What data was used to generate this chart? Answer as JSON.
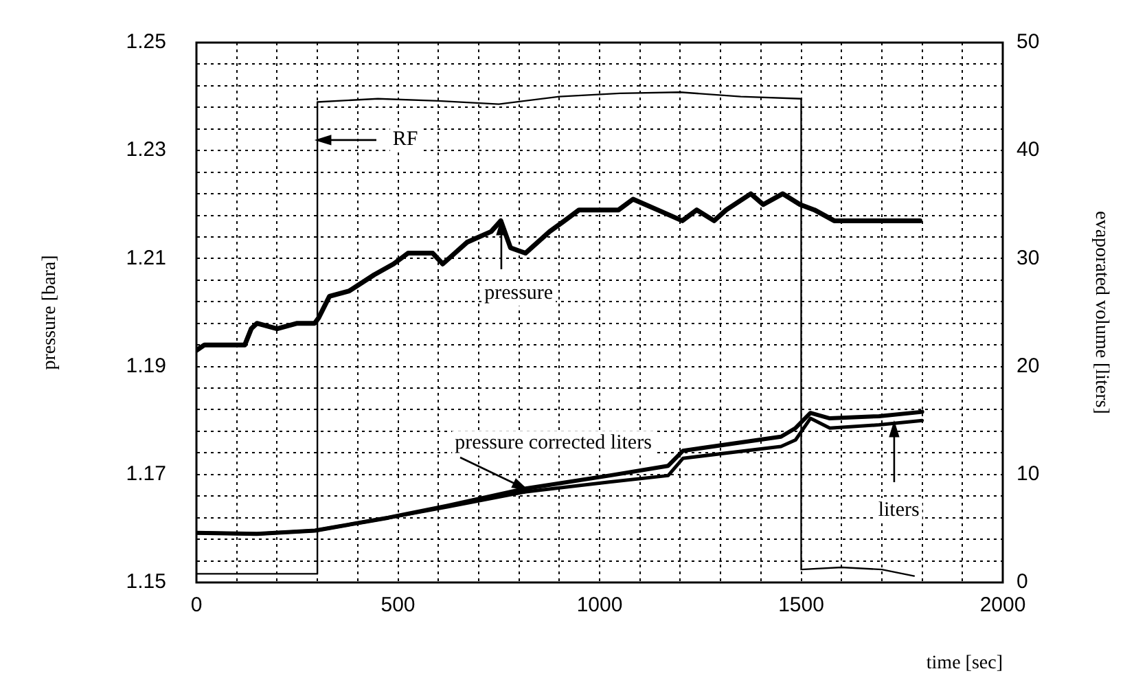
{
  "chart_data": {
    "type": "line",
    "xlabel": "time [sec]",
    "ylabel": "pressure [bara]",
    "y2label": "evaporated volume [liters]",
    "xlim": [
      0,
      2000
    ],
    "xticks": [
      0,
      {
        "value": 100,
        "label": null
      },
      {
        "value": 200,
        "label": null
      },
      {
        "value": 300,
        "label": null
      },
      {
        "value": 400,
        "label": null
      },
      500,
      {
        "value": 600,
        "label": null
      },
      {
        "value": 700,
        "label": null
      },
      {
        "value": 800,
        "label": null
      },
      {
        "value": 900,
        "label": null
      },
      1000,
      {
        "value": 1100,
        "label": null
      },
      {
        "value": 1200,
        "label": null
      },
      {
        "value": 1300,
        "label": null
      },
      {
        "value": 1400,
        "label": null
      },
      1500,
      {
        "value": 1600,
        "label": null
      },
      {
        "value": 1700,
        "label": null
      },
      {
        "value": 1800,
        "label": null
      },
      {
        "value": 1900,
        "label": null
      },
      2000
    ],
    "ylim": [
      1.15,
      1.25
    ],
    "yticks": [
      1.15,
      {
        "value": 1.154,
        "label": null
      },
      {
        "value": 1.158,
        "label": null
      },
      {
        "value": 1.162,
        "label": null
      },
      {
        "value": 1.166,
        "label": null
      },
      1.17,
      {
        "value": 1.174,
        "label": null
      },
      {
        "value": 1.178,
        "label": null
      },
      {
        "value": 1.182,
        "label": null
      },
      {
        "value": 1.186,
        "label": null
      },
      1.19,
      {
        "value": 1.194,
        "label": null
      },
      {
        "value": 1.198,
        "label": null
      },
      {
        "value": 1.202,
        "label": null
      },
      {
        "value": 1.206,
        "label": null
      },
      1.21,
      {
        "value": 1.214,
        "label": null
      },
      {
        "value": 1.218,
        "label": null
      },
      {
        "value": 1.222,
        "label": null
      },
      {
        "value": 1.226,
        "label": null
      },
      1.23,
      {
        "value": 1.234,
        "label": null
      },
      {
        "value": 1.238,
        "label": null
      },
      {
        "value": 1.242,
        "label": null
      },
      {
        "value": 1.246,
        "label": null
      },
      1.25
    ],
    "y2lim": [
      0,
      50
    ],
    "y2ticks": [
      0,
      10,
      20,
      30,
      40,
      50
    ],
    "grid": true,
    "legend": false,
    "line_style": "solid",
    "series": [
      {
        "color": "#000000",
        "axis": "y2",
        "x": [
          0,
          300,
          300,
          450,
          600,
          750,
          900,
          1050,
          1200,
          1350,
          1500,
          1500,
          1600,
          1700,
          1780
        ],
        "values": [
          0.8,
          0.8,
          44.5,
          44.8,
          44.6,
          44.3,
          45,
          45.3,
          45.4,
          45,
          44.8,
          1.2,
          1.4,
          1.2,
          0.6
        ]
      },
      {
        "color": "#000000",
        "x": [
          0,
          20,
          60,
          120,
          136,
          150,
          200,
          250,
          293,
          303,
          330,
          379,
          441,
          489,
          525,
          586,
          611,
          671,
          731,
          755,
          779,
          816,
          876,
          913,
          949,
          986,
          1047,
          1083,
          1144,
          1205,
          1241,
          1284,
          1314,
          1375,
          1406,
          1454,
          1497,
          1533,
          1582,
          1679,
          1795
        ],
        "values": [
          1.193,
          1.194,
          1.194,
          1.194,
          1.197,
          1.198,
          1.197,
          1.198,
          1.198,
          1.199,
          1.203,
          1.204,
          1.207,
          1.209,
          1.211,
          1.211,
          1.209,
          1.213,
          1.215,
          1.217,
          1.212,
          1.211,
          1.215,
          1.217,
          1.219,
          1.219,
          1.219,
          1.221,
          1.219,
          1.217,
          1.219,
          1.217,
          1.219,
          1.222,
          1.22,
          1.222,
          1.22,
          1.219,
          1.217,
          1.217,
          1.217
        ]
      },
      {
        "color": "#000000",
        "axis": "y2",
        "x": [
          0,
          150,
          294,
          476,
          622,
          817,
          1024,
          1170,
          1207,
          1450,
          1486,
          1523,
          1571,
          1693,
          1800
        ],
        "values": [
          4.6,
          4.5,
          4.8,
          6.0,
          7.1,
          8.7,
          9.9,
          10.8,
          12.2,
          13.5,
          14.3,
          15.7,
          15.2,
          15.4,
          15.8
        ]
      },
      {
        "color": "#000000",
        "axis": "y2",
        "x": [
          0,
          150,
          294,
          476,
          622,
          817,
          1024,
          1170,
          1207,
          1450,
          1486,
          1523,
          1571,
          1693,
          1800
        ],
        "values": [
          4.6,
          4.5,
          4.8,
          6.0,
          7.0,
          8.4,
          9.3,
          9.9,
          11.5,
          12.6,
          13.2,
          15.2,
          14.3,
          14.6,
          15.0
        ]
      }
    ],
    "annotations": [
      "RF",
      {
        "text": "pressure",
        "x": 755,
        "y": 1.217
      },
      {
        "text": "pressure corrected liters",
        "x": 817,
        "y": 1.1674
      },
      {
        "text": "liters",
        "x": 1732,
        "y": 1.1794
      }
    ]
  }
}
